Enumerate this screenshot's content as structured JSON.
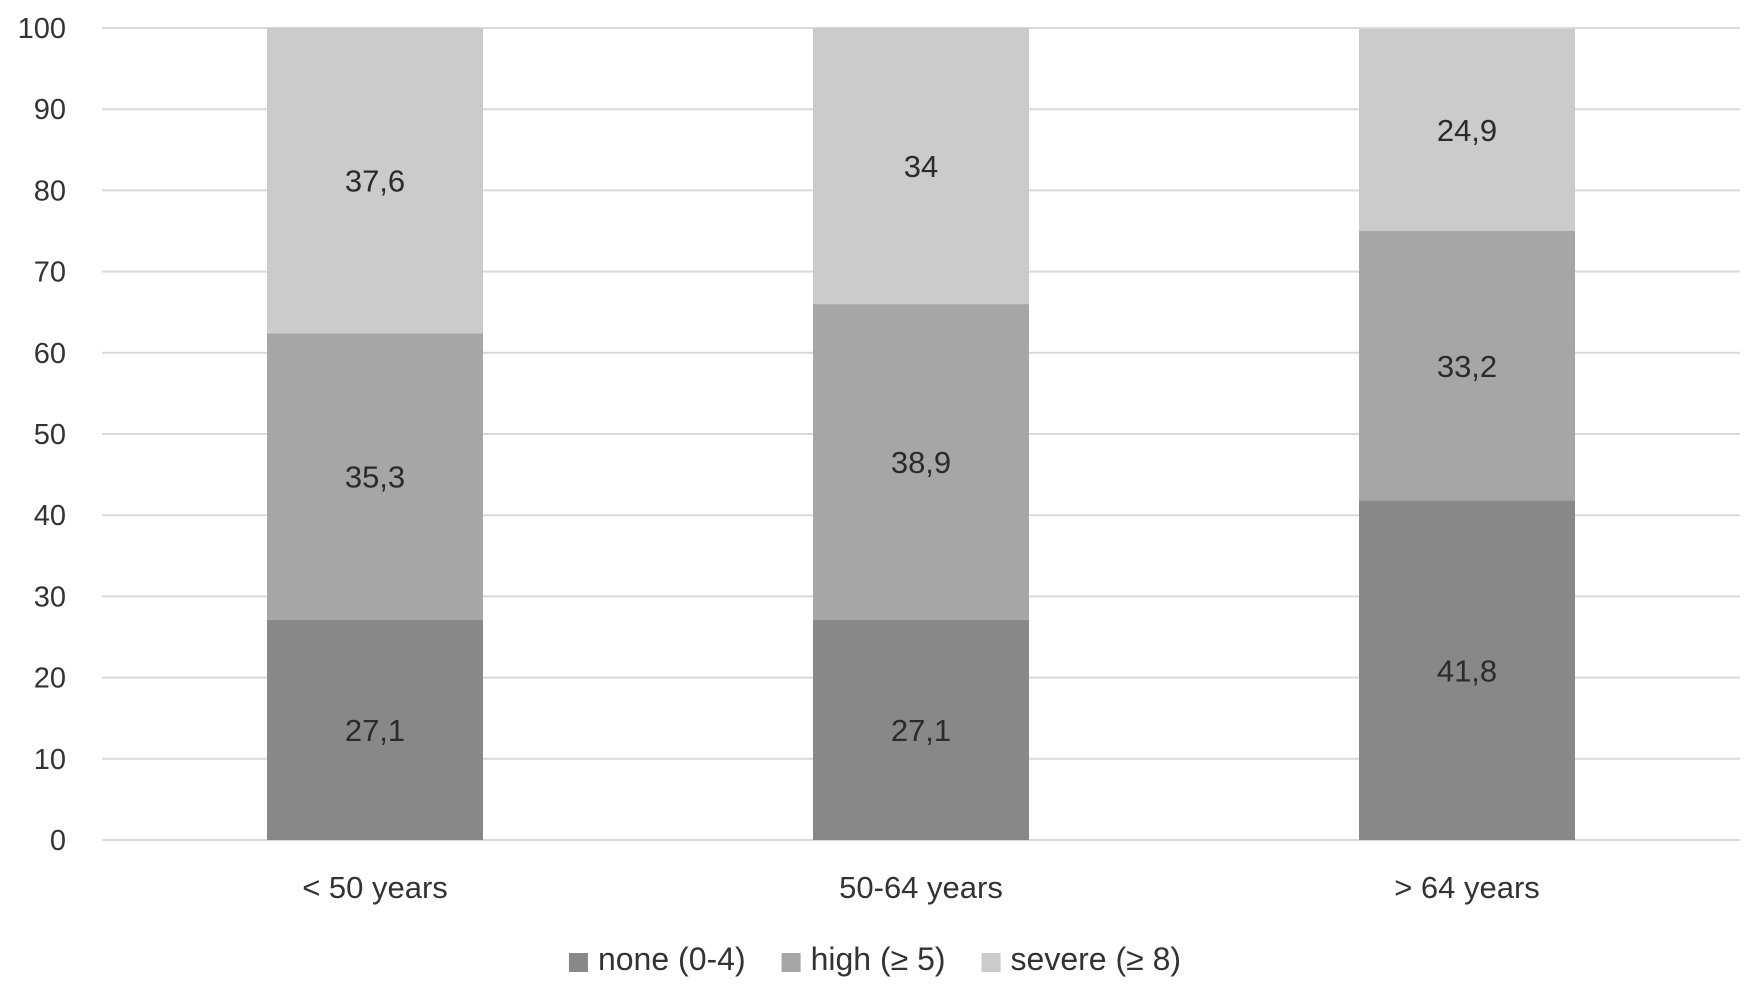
{
  "chart_data": {
    "type": "bar",
    "stacked": true,
    "categories": [
      "< 50 years",
      "50-64 years",
      "> 64 years"
    ],
    "series": [
      {
        "name": "none (0-4)",
        "values": [
          27.1,
          27.1,
          41.8
        ],
        "labels": [
          "27,1",
          "27,1",
          "41,8"
        ],
        "color": "#888888"
      },
      {
        "name": "high (≥ 5)",
        "values": [
          35.3,
          38.9,
          33.2
        ],
        "labels": [
          "35,3",
          "38,9",
          "33,2"
        ],
        "color": "#a6a6a6"
      },
      {
        "name": "severe (≥ 8)",
        "values": [
          37.6,
          34.0,
          24.9
        ],
        "labels": [
          "37,6",
          "34",
          "24,9"
        ],
        "color": "#cbcbcb"
      }
    ],
    "ylim": [
      0,
      100
    ],
    "yticks": [
      0,
      10,
      20,
      30,
      40,
      50,
      60,
      70,
      80,
      90,
      100
    ],
    "grid": true,
    "legend_position": "bottom"
  }
}
